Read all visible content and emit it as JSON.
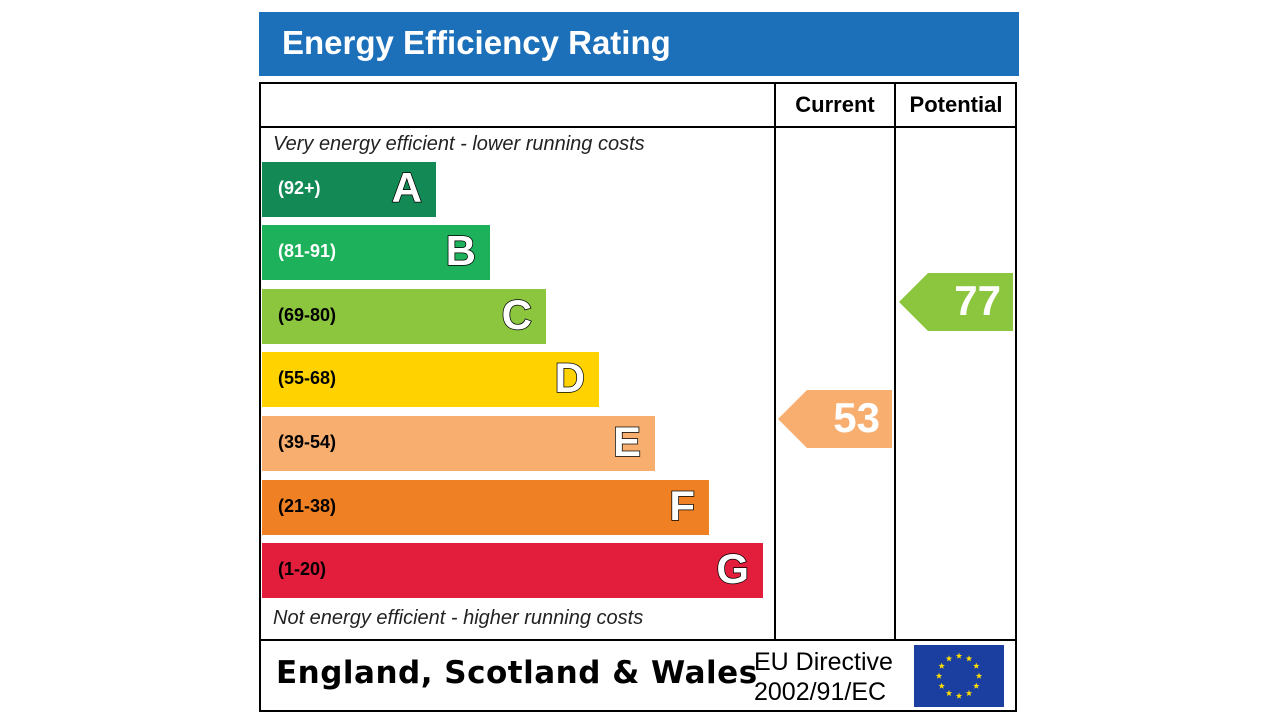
{
  "title": "Energy Efficiency Rating",
  "columns": {
    "current": "Current",
    "potential": "Potential"
  },
  "top_note": "Very energy efficient - lower running costs",
  "bottom_note": "Not energy efficient - higher running costs",
  "bands": [
    {
      "letter": "A",
      "range": "(92+)",
      "color": "#138a55",
      "range_color": "#ffffff"
    },
    {
      "letter": "B",
      "range": "(81-91)",
      "color": "#1cb15a",
      "range_color": "#ffffff"
    },
    {
      "letter": "C",
      "range": "(69-80)",
      "color": "#8cc63f",
      "range_color": "#000000"
    },
    {
      "letter": "D",
      "range": "(55-68)",
      "color": "#ffd200",
      "range_color": "#000000"
    },
    {
      "letter": "E",
      "range": "(39-54)",
      "color": "#f7ae6f",
      "range_color": "#000000"
    },
    {
      "letter": "F",
      "range": "(21-38)",
      "color": "#ef8023",
      "range_color": "#000000"
    },
    {
      "letter": "G",
      "range": "(1-20)",
      "color": "#e31d3c",
      "range_color": "#000000"
    }
  ],
  "current_rating": {
    "value": "53",
    "band": "E",
    "color": "#f7ae6f"
  },
  "potential_rating": {
    "value": "77",
    "band": "C",
    "color": "#8cc63f"
  },
  "footer": {
    "region": "England, Scotland & Wales",
    "directive_line1": "EU Directive",
    "directive_line2": "2002/91/EC",
    "flag_color": "#1a3fa0",
    "star_color": "#ffdd00",
    "flag_icon": "eu-flag-icon"
  }
}
